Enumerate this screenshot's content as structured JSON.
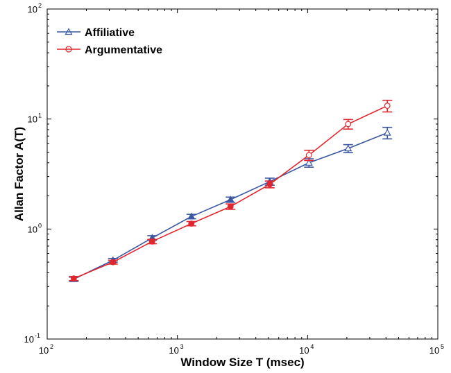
{
  "chart_data": {
    "type": "line",
    "xlabel": "Window Size T (msec)",
    "ylabel": "Allan Factor A(T)",
    "xscale": "log",
    "yscale": "log",
    "xlim": [
      100,
      100000
    ],
    "ylim": [
      0.1,
      100
    ],
    "grid": false,
    "legend_position": "top-left",
    "x_ticks": [
      {
        "base": "10",
        "exp": "2",
        "value": 100
      },
      {
        "base": "10",
        "exp": "3",
        "value": 1000
      },
      {
        "base": "10",
        "exp": "4",
        "value": 10000
      },
      {
        "base": "10",
        "exp": "5",
        "value": 100000
      }
    ],
    "y_ticks": [
      {
        "base": "10",
        "exp": "-1",
        "value": 0.1
      },
      {
        "base": "10",
        "exp": "0",
        "value": 1
      },
      {
        "base": "10",
        "exp": "1",
        "value": 10
      },
      {
        "base": "10",
        "exp": "2",
        "value": 100
      }
    ],
    "series": [
      {
        "name": "Affiliative",
        "color": "#3a56a3",
        "marker": "triangle",
        "x": [
          160,
          320,
          640,
          1280,
          2560,
          5120,
          10240,
          20480,
          40960
        ],
        "y": [
          0.35,
          0.52,
          0.83,
          1.3,
          1.85,
          2.7,
          4.0,
          5.4,
          7.5
        ],
        "err": [
          0.015,
          0.02,
          0.04,
          0.06,
          0.1,
          0.2,
          0.35,
          0.45,
          0.9
        ]
      },
      {
        "name": "Argumentative",
        "color": "#e0262e",
        "marker": "circle",
        "x": [
          160,
          320,
          640,
          1280,
          2560,
          5120,
          10240,
          20480,
          40960
        ],
        "y": [
          0.355,
          0.5,
          0.77,
          1.12,
          1.6,
          2.55,
          4.7,
          9.0,
          13.2
        ],
        "err": [
          0.015,
          0.02,
          0.035,
          0.05,
          0.09,
          0.18,
          0.5,
          0.9,
          1.6
        ]
      }
    ]
  }
}
